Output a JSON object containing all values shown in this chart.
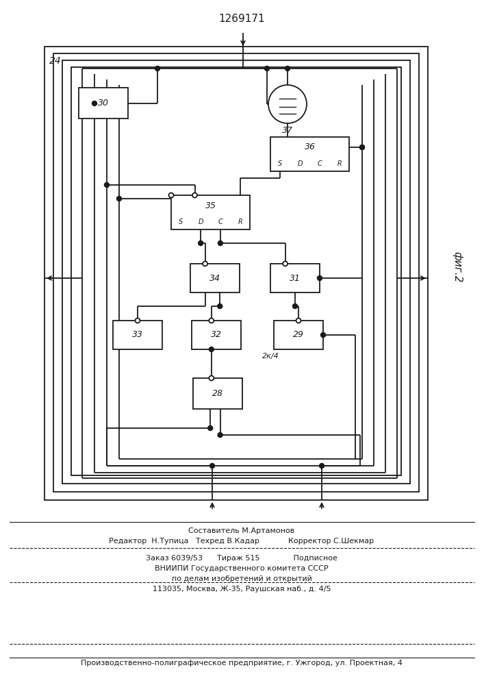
{
  "title": "1269171",
  "fig_label": "фиг.2",
  "bg_color": "#ffffff",
  "line_color": "#1a1a1a",
  "footer": {
    "line1": "Составитель М.Артамонов",
    "line2": "Редактор  Н.Тупица   Техред В.Кадар            Корректор С.Шекмар",
    "line3": "Заказ 6039/53      Тираж 515              Подписное",
    "line4": "ВНИИПИ Государственного комитета СССР",
    "line5": "по делам изобретений и открытий",
    "line6": "113035, Москва, Ж-35, Раушская наб., д. 4/5",
    "line7": "Производственно-полиграфическое предприятие, г. Ужгород, ул. Проектная, 4"
  }
}
